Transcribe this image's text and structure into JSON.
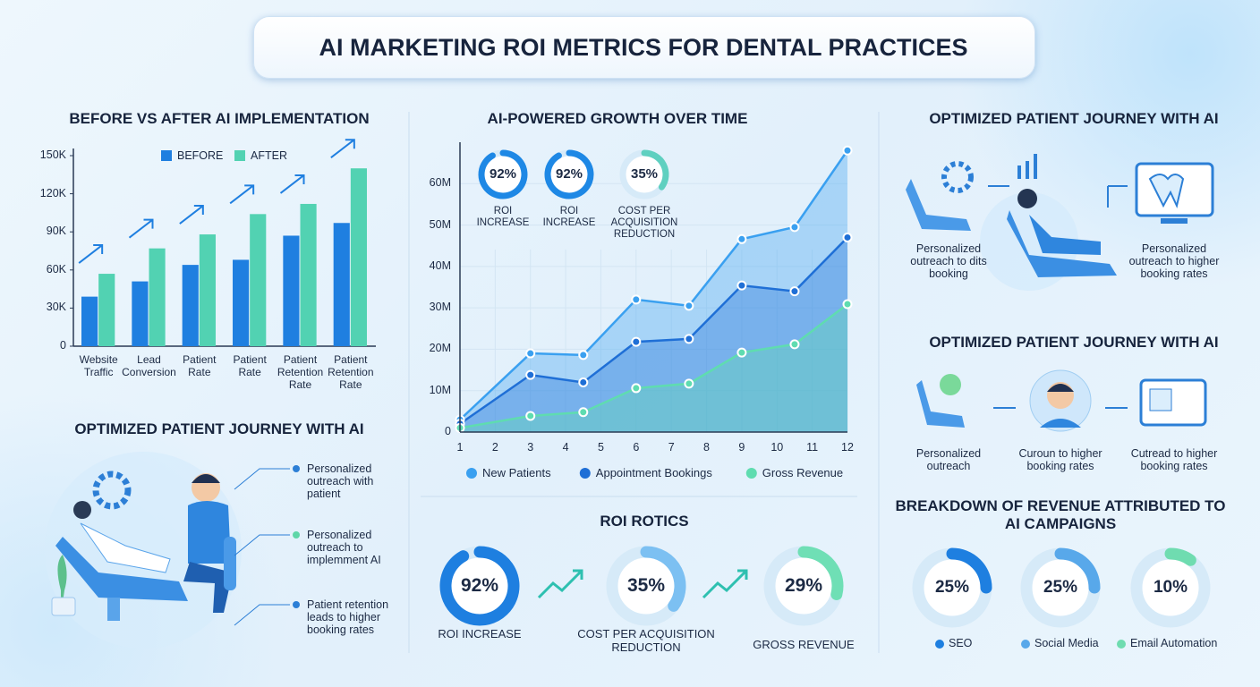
{
  "title": "AI MARKETING ROI METRICS FOR DENTAL PRACTICES",
  "chart_data": [
    {
      "type": "bar",
      "title": "BEFORE VS AFTER AI IMPLEMENTATION",
      "categories": [
        "Website Traffic",
        "Lead Conversion",
        "Patient Rate",
        "Patient Rate",
        "Patient Retention Rate",
        "Patient Retention Rate"
      ],
      "series": [
        {
          "name": "BEFORE",
          "color": "#1f7fe0",
          "values": [
            39000,
            51000,
            64000,
            68000,
            87000,
            97000
          ]
        },
        {
          "name": "AFTER",
          "color": "#52d2b2",
          "values": [
            57000,
            77000,
            88000,
            104000,
            112000,
            140000
          ]
        }
      ],
      "ylim": [
        0,
        150000
      ],
      "yticks": [
        0,
        {
          "value": 30000,
          "label": "30K"
        },
        {
          "value": 60000,
          "label": "60K"
        },
        {
          "value": 90000,
          "label": "90K"
        },
        {
          "value": 120000,
          "label": "120K"
        },
        {
          "value": 150000,
          "label": "150K"
        }
      ],
      "grid": false
    },
    {
      "type": "area",
      "title": "AI-POWERED GROWTH OVER TIME",
      "x": [
        1,
        3,
        4.5,
        6,
        7.5,
        9,
        10.5,
        12
      ],
      "series": [
        {
          "name": "New Patients",
          "color": "#3aa0f0",
          "values": [
            3000000,
            19000000,
            18600000,
            32000000,
            30500000,
            46600000,
            49500000,
            68000000
          ]
        },
        {
          "name": "Appointment Bookings",
          "color": "#1f6fd6",
          "values": [
            2000000,
            13800000,
            12000000,
            21800000,
            22500000,
            35400000,
            34000000,
            47000000
          ]
        },
        {
          "name": "Gross Revenue",
          "color": "#5fdcb0",
          "values": [
            1000000,
            3900000,
            4800000,
            10600000,
            11700000,
            19200000,
            21200000,
            30900000
          ]
        }
      ],
      "xlim": [
        1,
        12
      ],
      "xticks": [
        1,
        2,
        3,
        4,
        5,
        6,
        7,
        8,
        9,
        10,
        11,
        12
      ],
      "ylim": [
        0,
        70000000
      ],
      "yticks": [
        0,
        {
          "value": 10000000,
          "label": "10M"
        },
        {
          "value": 20000000,
          "label": "20M"
        },
        {
          "value": 30000000,
          "label": "30M"
        },
        {
          "value": 40000000,
          "label": "40M"
        },
        {
          "value": 50000000,
          "label": "50M"
        },
        {
          "value": 60000000,
          "label": "60M"
        }
      ],
      "grid": true
    },
    {
      "type": "donut",
      "categories": [
        "ROI INCREASE",
        "ROI INCREASE",
        "COST PER ACQUISITION REDUCTION"
      ],
      "values": [
        92,
        92,
        35
      ],
      "value_labels": [
        "92%",
        "92%",
        "35%"
      ],
      "colors": [
        "#1e88e5",
        "#1e88e5",
        "#5fd0c0"
      ]
    },
    {
      "type": "donut",
      "title": "ROI ROTICS",
      "categories": [
        "ROI INCREASE",
        "COST PER ACQUISITION REDUCTION",
        "GROSS REVENUE"
      ],
      "values": [
        92,
        35,
        29
      ],
      "value_labels": [
        "92%",
        "35%",
        "29%"
      ],
      "colors": [
        "#1e7fe0",
        "#7cc0f2",
        "#6fdfb5"
      ]
    },
    {
      "type": "donut",
      "title": "BREAKDOWN OF REVENUE ATTRIBUTED TO AI CAMPAIGNS",
      "categories": [
        "SEO",
        "Social Media",
        "Email Automation"
      ],
      "values": [
        25,
        25,
        10
      ],
      "value_labels": [
        "25%",
        "25%",
        "10%"
      ],
      "colors": [
        "#1e7fe0",
        "#58a8ea",
        "#6fdcb0"
      ]
    }
  ],
  "journeys": [
    {
      "title": "OPTIMIZED PATIENT JOURNEY WITH AI",
      "steps": [
        "Personalized outreach with patient",
        "Personalized outreach to implemment AI",
        "Patient retention leads to higher booking rates"
      ]
    },
    {
      "title": "OPTIMIZED PATIENT JOURNEY WITH AI",
      "steps": [
        "Personalized outreach to dits booking",
        "Personalized outreach to higher booking rates"
      ]
    },
    {
      "title": "OPTIMIZED PATIENT JOURNEY WITH AI",
      "steps": [
        "Personalized outreach",
        "Curoun to higher booking rates",
        "Cutread to higher booking rates"
      ]
    }
  ]
}
